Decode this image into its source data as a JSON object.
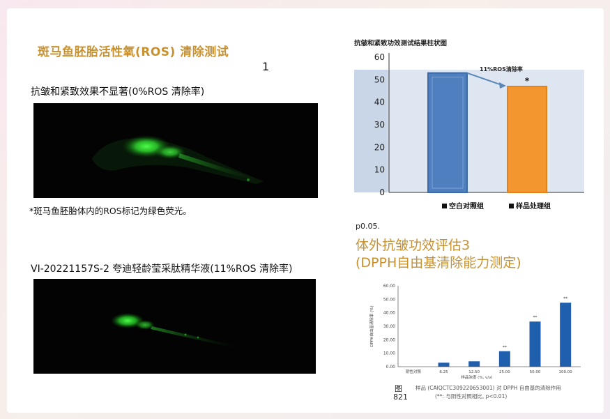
{
  "left": {
    "title": "斑马鱼胚胎活性氧(ROS) 清除测试",
    "page_number": "1",
    "control_caption": "抗皱和紧致效果不显著(0%ROS 清除率)",
    "ros_note": "*斑马鱼胚胎体内的ROS标记为绿色荧光。",
    "sample_caption": "VI-20221157S-2 夸迪轻龄莹采肽精华液(11%ROS 清除率)"
  },
  "right": {
    "bar_chart_title": "抗皱和紧致功效测试结果柱状图",
    "p_value": "p0.05.",
    "eval_title_line1": "体外抗皱功效评估3",
    "eval_title_line2": "(DPPH自由基清除能力测定)",
    "figure_label": "图",
    "figure_number": "821",
    "figure_caption_line1": "样品 (CAIQCTC309220653001) 对 DPPH 自由基的清除作用",
    "figure_caption_line2": "(**: 与阴性对照相比, p<0.01)"
  },
  "colors": {
    "title_gold": "#c8912f",
    "bar_blue": "#4f7fbf",
    "bar_orange": "#f3962f",
    "dpph_blue": "#1f5fae",
    "fluorescence_green": "#39e23a"
  },
  "chart_data": [
    {
      "type": "bar",
      "title": "抗皱和紧致功效测试结果柱状图",
      "categories": [
        "空白对照组",
        "样品处理组"
      ],
      "values": [
        53,
        47
      ],
      "ylim": [
        0,
        60
      ],
      "yticks": [
        0,
        10,
        20,
        30,
        40,
        50,
        60
      ],
      "annotation": "11%ROS清除率",
      "significance_marker": "*",
      "legend": [
        "空白对照组",
        "样品处理组"
      ],
      "legend_position": "bottom",
      "grid": false
    },
    {
      "type": "bar",
      "categories": [
        "阴性对照",
        "6.25",
        "12.50",
        "25.00",
        "50.00",
        "100.00"
      ],
      "values": [
        0,
        3,
        4,
        11.5,
        33.5,
        47.5
      ],
      "significance": [
        "",
        "",
        "",
        "**",
        "**",
        "**"
      ],
      "ylim": [
        0,
        60
      ],
      "yticks": [
        "0.00",
        "10.00",
        "20.00",
        "30.00",
        "40.00",
        "50.00",
        "60.00"
      ],
      "xlabel": "样品浓度 (%, v/v)",
      "ylabel": "DPPH自由基清除率 (%)",
      "grid": false
    }
  ]
}
